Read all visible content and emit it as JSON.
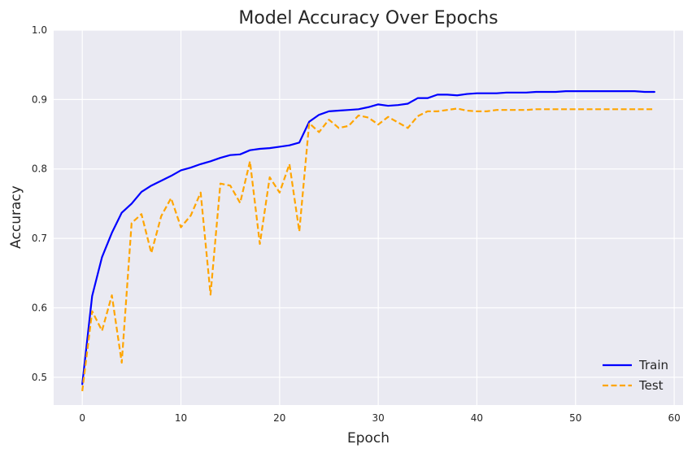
{
  "chart_data": {
    "type": "line",
    "title": "Model Accuracy Over Epochs",
    "xlabel": "Epoch",
    "ylabel": "Accuracy",
    "xlim": [
      -2.9,
      60.9
    ],
    "ylim": [
      0.46,
      1.0
    ],
    "xticks": [
      0,
      10,
      20,
      30,
      40,
      50,
      60
    ],
    "yticks": [
      0.5,
      0.6,
      0.7,
      0.8,
      0.9,
      1.0
    ],
    "grid": true,
    "legend_position": "bottom-right",
    "x": [
      0,
      1,
      2,
      3,
      4,
      5,
      6,
      7,
      8,
      9,
      10,
      11,
      12,
      13,
      14,
      15,
      16,
      17,
      18,
      19,
      20,
      21,
      22,
      23,
      24,
      25,
      26,
      27,
      28,
      29,
      30,
      31,
      32,
      33,
      34,
      35,
      36,
      37,
      38,
      39,
      40,
      41,
      42,
      43,
      44,
      45,
      46,
      47,
      48,
      49,
      50,
      51,
      52,
      53,
      54,
      55,
      56,
      57,
      58
    ],
    "series": [
      {
        "name": "Train",
        "color": "#0000ff",
        "style": "solid",
        "values": [
          0.49,
          0.617,
          0.673,
          0.708,
          0.737,
          0.75,
          0.767,
          0.776,
          0.783,
          0.79,
          0.798,
          0.802,
          0.807,
          0.811,
          0.816,
          0.82,
          0.821,
          0.827,
          0.829,
          0.83,
          0.832,
          0.834,
          0.838,
          0.868,
          0.878,
          0.883,
          0.884,
          0.885,
          0.886,
          0.889,
          0.893,
          0.891,
          0.892,
          0.894,
          0.902,
          0.902,
          0.907,
          0.907,
          0.906,
          0.908,
          0.909,
          0.909,
          0.909,
          0.91,
          0.91,
          0.91,
          0.911,
          0.911,
          0.911,
          0.912,
          0.912,
          0.912,
          0.912,
          0.912,
          0.912,
          0.912,
          0.912,
          0.911,
          0.911
        ]
      },
      {
        "name": "Test",
        "color": "#ffa500",
        "style": "dashed",
        "values": [
          0.48,
          0.595,
          0.567,
          0.618,
          0.521,
          0.722,
          0.735,
          0.679,
          0.732,
          0.758,
          0.716,
          0.733,
          0.766,
          0.619,
          0.779,
          0.776,
          0.751,
          0.811,
          0.692,
          0.788,
          0.766,
          0.807,
          0.71,
          0.866,
          0.853,
          0.871,
          0.859,
          0.862,
          0.877,
          0.874,
          0.864,
          0.875,
          0.867,
          0.859,
          0.876,
          0.883,
          0.883,
          0.885,
          0.887,
          0.884,
          0.883,
          0.883,
          0.885,
          0.885,
          0.885,
          0.885,
          0.886,
          0.886,
          0.886,
          0.886,
          0.886,
          0.886,
          0.886,
          0.886,
          0.886,
          0.886,
          0.886,
          0.886,
          0.886
        ]
      }
    ]
  }
}
